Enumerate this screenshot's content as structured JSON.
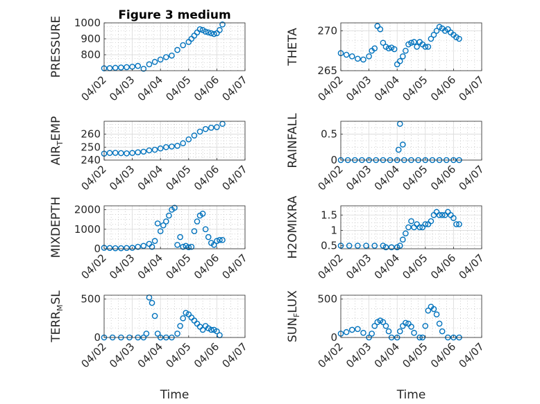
{
  "figure": {
    "title": "Figure 3 medium"
  },
  "colors": {
    "marker": "#0072BD",
    "axes": "#262626",
    "grid": "#b0b0b0",
    "background": "#ffffff"
  },
  "chart_data": [
    {
      "type": "scatter",
      "title": "Figure 3 medium",
      "ylabel": "PRESSURE",
      "xlabel": "",
      "xlim": [
        0,
        5
      ],
      "ylim": [
        700,
        1000
      ],
      "yticks": [
        800,
        900,
        1000
      ],
      "grid": true,
      "xtick_labels": [
        "04/02",
        "04/03",
        "04/04",
        "04/05",
        "04/06",
        "04/07"
      ],
      "series": [
        {
          "x": [
            0.0,
            0.2,
            0.4,
            0.6,
            0.8,
            1.0,
            1.2,
            1.4,
            1.6,
            1.8,
            2.0,
            2.2,
            2.4,
            2.6,
            2.8,
            3.0,
            3.1,
            3.2,
            3.3,
            3.4,
            3.5,
            3.6,
            3.7,
            3.8,
            3.9,
            4.0,
            4.1,
            4.2
          ],
          "y": [
            715,
            716,
            718,
            720,
            722,
            725,
            730,
            712,
            740,
            755,
            770,
            785,
            795,
            830,
            860,
            880,
            900,
            920,
            940,
            960,
            955,
            945,
            940,
            935,
            930,
            935,
            955,
            990
          ]
        }
      ]
    },
    {
      "type": "scatter",
      "ylabel": "THETA",
      "xlabel": "",
      "xlim": [
        0,
        5
      ],
      "ylim": [
        265,
        271
      ],
      "yticks": [
        265,
        270
      ],
      "grid": true,
      "xtick_labels": [
        "04/02",
        "04/03",
        "04/04",
        "04/05",
        "04/06",
        "04/07"
      ],
      "series": [
        {
          "x": [
            0.0,
            0.2,
            0.4,
            0.6,
            0.8,
            1.0,
            1.1,
            1.2,
            1.3,
            1.4,
            1.5,
            1.6,
            1.7,
            1.8,
            1.9,
            2.0,
            2.1,
            2.2,
            2.3,
            2.4,
            2.5,
            2.6,
            2.7,
            2.8,
            2.9,
            3.0,
            3.1,
            3.2,
            3.3,
            3.4,
            3.5,
            3.6,
            3.7,
            3.8,
            3.9,
            4.0,
            4.1,
            4.2
          ],
          "y": [
            267.2,
            267.0,
            266.8,
            266.5,
            266.4,
            266.8,
            267.5,
            267.8,
            270.6,
            270.2,
            268.5,
            268.0,
            267.8,
            267.9,
            267.7,
            265.8,
            266.2,
            266.8,
            267.5,
            268.3,
            268.5,
            268.6,
            268.0,
            268.6,
            268.3,
            268.0,
            268.0,
            269.0,
            269.5,
            270.0,
            270.5,
            270.3,
            270.0,
            270.2,
            269.8,
            269.5,
            269.2,
            269.0
          ]
        }
      ]
    },
    {
      "type": "scatter",
      "ylabel": "AIR_TEMP",
      "xlabel": "",
      "xlim": [
        0,
        5
      ],
      "ylim": [
        240,
        270
      ],
      "yticks": [
        240,
        250,
        260
      ],
      "grid": true,
      "xtick_labels": [
        "04/02",
        "04/03",
        "04/04",
        "04/05",
        "04/06",
        "04/07"
      ],
      "series": [
        {
          "x": [
            0.0,
            0.2,
            0.4,
            0.6,
            0.8,
            1.0,
            1.2,
            1.4,
            1.6,
            1.8,
            2.0,
            2.2,
            2.4,
            2.6,
            2.8,
            3.0,
            3.2,
            3.4,
            3.6,
            3.8,
            4.0,
            4.2
          ],
          "y": [
            245,
            245.5,
            245.6,
            245.4,
            245.2,
            245.5,
            246,
            246.5,
            247.5,
            248,
            249,
            250,
            250.5,
            251,
            253,
            256,
            259,
            262,
            264,
            265,
            265.5,
            268
          ]
        }
      ]
    },
    {
      "type": "scatter",
      "ylabel": "RAINFALL",
      "xlabel": "",
      "xlim": [
        0,
        5
      ],
      "ylim": [
        0,
        0.75
      ],
      "yticks": [
        0,
        0.5
      ],
      "grid": true,
      "xtick_labels": [
        "04/02",
        "04/03",
        "04/04",
        "04/05",
        "04/06",
        "04/07"
      ],
      "series": [
        {
          "x": [
            0.0,
            0.25,
            0.5,
            0.75,
            1.0,
            1.25,
            1.5,
            1.75,
            2.0,
            2.05,
            2.1,
            2.2,
            2.25,
            2.5,
            2.75,
            3.0,
            3.25,
            3.5,
            3.75,
            4.0,
            4.2
          ],
          "y": [
            0,
            0,
            0,
            0,
            0,
            0,
            0,
            0,
            0,
            0.2,
            0.7,
            0.3,
            0,
            0,
            0,
            0,
            0,
            0,
            0,
            0,
            0
          ]
        }
      ]
    },
    {
      "type": "scatter",
      "ylabel": "MIXDEPTH",
      "xlabel": "",
      "xlim": [
        0,
        5
      ],
      "ylim": [
        0,
        2200
      ],
      "yticks": [
        0,
        1000,
        2000
      ],
      "grid": true,
      "xtick_labels": [
        "04/02",
        "04/03",
        "04/04",
        "04/05",
        "04/06",
        "04/07"
      ],
      "series": [
        {
          "x": [
            0.0,
            0.2,
            0.4,
            0.6,
            0.8,
            1.0,
            1.2,
            1.4,
            1.6,
            1.7,
            1.8,
            1.9,
            2.0,
            2.1,
            2.2,
            2.3,
            2.4,
            2.5,
            2.6,
            2.7,
            2.8,
            2.9,
            3.0,
            3.1,
            3.2,
            3.3,
            3.4,
            3.5,
            3.6,
            3.7,
            3.8,
            3.9,
            4.0,
            4.1,
            4.2
          ],
          "y": [
            50,
            40,
            30,
            30,
            40,
            50,
            100,
            150,
            250,
            100,
            400,
            1300,
            900,
            1200,
            1400,
            1700,
            2000,
            2100,
            200,
            600,
            100,
            150,
            80,
            100,
            900,
            1400,
            1700,
            1800,
            1000,
            600,
            300,
            200,
            400,
            450,
            450
          ]
        }
      ]
    },
    {
      "type": "scatter",
      "ylabel": "H2OMIXRA",
      "xlabel": "",
      "xlim": [
        0,
        5
      ],
      "ylim": [
        0.4,
        1.8
      ],
      "yticks": [
        0.5,
        1,
        1.5
      ],
      "grid": true,
      "xtick_labels": [
        "04/02",
        "04/03",
        "04/04",
        "04/05",
        "04/06",
        "04/07"
      ],
      "series": [
        {
          "x": [
            0.0,
            0.3,
            0.6,
            0.9,
            1.2,
            1.5,
            1.6,
            1.8,
            2.0,
            2.1,
            2.2,
            2.3,
            2.4,
            2.5,
            2.6,
            2.7,
            2.8,
            2.9,
            3.0,
            3.1,
            3.2,
            3.3,
            3.4,
            3.5,
            3.6,
            3.7,
            3.8,
            3.9,
            4.0,
            4.1,
            4.2
          ],
          "y": [
            0.5,
            0.5,
            0.5,
            0.5,
            0.5,
            0.5,
            0.45,
            0.45,
            0.45,
            0.5,
            0.7,
            0.9,
            1.1,
            1.3,
            1.1,
            1.2,
            1.1,
            1.1,
            1.2,
            1.2,
            1.3,
            1.5,
            1.6,
            1.5,
            1.5,
            1.5,
            1.6,
            1.5,
            1.4,
            1.2,
            1.2
          ]
        }
      ]
    },
    {
      "type": "scatter",
      "ylabel": "TERR_MSL",
      "xlabel": "Time",
      "xlim": [
        0,
        5
      ],
      "ylim": [
        0,
        550
      ],
      "yticks": [
        0,
        500
      ],
      "grid": true,
      "xtick_labels": [
        "04/02",
        "04/03",
        "04/04",
        "04/05",
        "04/06",
        "04/07"
      ],
      "series": [
        {
          "x": [
            0.0,
            0.3,
            0.6,
            0.9,
            1.2,
            1.4,
            1.5,
            1.6,
            1.7,
            1.8,
            1.9,
            2.0,
            2.2,
            2.4,
            2.6,
            2.7,
            2.8,
            2.9,
            3.0,
            3.1,
            3.2,
            3.3,
            3.4,
            3.5,
            3.6,
            3.7,
            3.8,
            3.9,
            4.0,
            4.1
          ],
          "y": [
            0,
            0,
            0,
            0,
            0,
            0,
            50,
            520,
            450,
            280,
            50,
            0,
            0,
            0,
            50,
            150,
            250,
            320,
            300,
            260,
            220,
            180,
            140,
            100,
            150,
            120,
            100,
            100,
            80,
            30
          ]
        }
      ]
    },
    {
      "type": "scatter",
      "ylabel": "SUN_FLUX",
      "xlabel": "Time",
      "xlim": [
        0,
        5
      ],
      "ylim": [
        0,
        550
      ],
      "yticks": [
        0,
        500
      ],
      "grid": true,
      "xtick_labels": [
        "04/02",
        "04/03",
        "04/04",
        "04/05",
        "04/06",
        "04/07"
      ],
      "series": [
        {
          "x": [
            0.0,
            0.2,
            0.4,
            0.6,
            0.8,
            1.0,
            1.1,
            1.2,
            1.3,
            1.4,
            1.5,
            1.6,
            1.7,
            1.8,
            2.0,
            2.1,
            2.2,
            2.3,
            2.4,
            2.5,
            2.6,
            2.8,
            2.9,
            3.0,
            3.1,
            3.2,
            3.3,
            3.4,
            3.5,
            3.6,
            3.8,
            4.0,
            4.2
          ],
          "y": [
            50,
            70,
            100,
            110,
            60,
            0,
            50,
            150,
            200,
            220,
            200,
            150,
            80,
            0,
            0,
            80,
            150,
            190,
            180,
            140,
            60,
            0,
            0,
            150,
            350,
            400,
            370,
            300,
            180,
            80,
            0,
            0,
            0
          ]
        }
      ]
    }
  ]
}
